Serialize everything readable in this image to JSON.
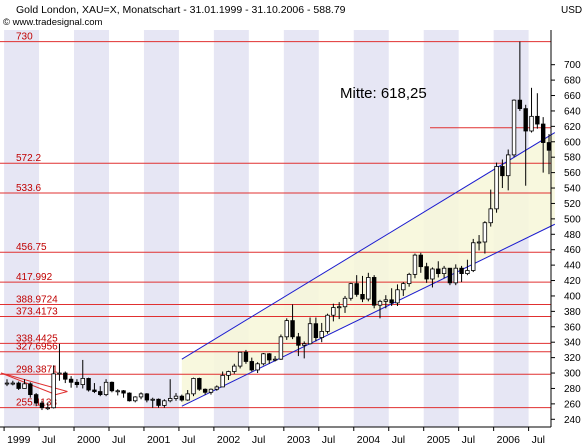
{
  "header": {
    "title": "Gold London, XAU=X, Monatschart - 31.01.1999 - 31.10.2006 - 588.79",
    "copyright": "© www.tradesignal.com",
    "unit": "USD"
  },
  "annotation": {
    "text": "Mitte: 618,25"
  },
  "colors": {
    "candle_up": "#ffffff",
    "candle_down": "#000000",
    "level_line": "#e03030",
    "level_text": "#c00000",
    "channel_line": "#1c1ccf",
    "channel_fill": "#f7f7d8",
    "stripe": "#e6e6f4",
    "triangle_line": "#e03030"
  },
  "chart_data": {
    "type": "candlestick",
    "title": "Gold London, XAU=X, Monatschart - 31.01.1999 - 31.10.2006 - 588.79",
    "ylabel": "USD",
    "ylim": [
      230,
      745
    ],
    "y_ticks": [
      240,
      260,
      280,
      300,
      320,
      340,
      360,
      380,
      400,
      420,
      440,
      460,
      480,
      500,
      520,
      540,
      560,
      580,
      600,
      620,
      640,
      660,
      680,
      700
    ],
    "x_ticks": [
      {
        "label": "1999",
        "date": "1999-01"
      },
      {
        "label": "Jul",
        "date": "1999-07"
      },
      {
        "label": "2000",
        "date": "2000-01"
      },
      {
        "label": "Jul",
        "date": "2000-07"
      },
      {
        "label": "2001",
        "date": "2001-01"
      },
      {
        "label": "Jul",
        "date": "2001-07"
      },
      {
        "label": "2002",
        "date": "2002-01"
      },
      {
        "label": "Jul",
        "date": "2002-07"
      },
      {
        "label": "2003",
        "date": "2003-01"
      },
      {
        "label": "Jul",
        "date": "2003-07"
      },
      {
        "label": "2004",
        "date": "2004-01"
      },
      {
        "label": "Jul",
        "date": "2004-07"
      },
      {
        "label": "2005",
        "date": "2005-01"
      },
      {
        "label": "Jul",
        "date": "2005-07"
      },
      {
        "label": "2006",
        "date": "2006-01"
      },
      {
        "label": "Jul",
        "date": "2006-07"
      }
    ],
    "horizontal_levels": [
      {
        "label": "730",
        "value": 730
      },
      {
        "label": "572.2",
        "value": 572.2
      },
      {
        "label": "533.6",
        "value": 533.6
      },
      {
        "label": "456.75",
        "value": 456.75
      },
      {
        "label": "417.992",
        "value": 417.992
      },
      {
        "label": "388.9724",
        "value": 388.9724
      },
      {
        "label": "373.4173",
        "value": 373.4173
      },
      {
        "label": "338.4425",
        "value": 338.4425
      },
      {
        "label": "327.6956",
        "value": 327.6956
      },
      {
        "label": "298.3871",
        "value": 298.3871
      },
      {
        "label": "255.1138",
        "value": 255.1138
      }
    ],
    "mitte_level": 618.25,
    "channel": {
      "upper": [
        {
          "date": "2001-07",
          "value": 318
        },
        {
          "date": "2006-11",
          "value": 612
        }
      ],
      "lower": [
        {
          "date": "2001-07",
          "value": 257
        },
        {
          "date": "2006-11",
          "value": 493
        }
      ]
    },
    "triangle": {
      "apex": {
        "date": "1999-01",
        "value": 300
      },
      "upper": {
        "date": "1999-10",
        "value": 276
      },
      "lower": {
        "date": "1999-08",
        "value": 272
      }
    },
    "candles": [
      {
        "date": "1999-01",
        "open": 287,
        "high": 292,
        "low": 283,
        "close": 287
      },
      {
        "date": "1999-02",
        "open": 287,
        "high": 290,
        "low": 284,
        "close": 287
      },
      {
        "date": "1999-03",
        "open": 287,
        "high": 289,
        "low": 278,
        "close": 280
      },
      {
        "date": "1999-04",
        "open": 280,
        "high": 292,
        "low": 280,
        "close": 286
      },
      {
        "date": "1999-05",
        "open": 286,
        "high": 288,
        "low": 268,
        "close": 272
      },
      {
        "date": "1999-06",
        "open": 272,
        "high": 274,
        "low": 257,
        "close": 261
      },
      {
        "date": "1999-07",
        "open": 261,
        "high": 264,
        "low": 252,
        "close": 255
      },
      {
        "date": "1999-08",
        "open": 255,
        "high": 262,
        "low": 252,
        "close": 255
      },
      {
        "date": "1999-09",
        "open": 255,
        "high": 310,
        "low": 254,
        "close": 299
      },
      {
        "date": "1999-10",
        "open": 299,
        "high": 338,
        "low": 290,
        "close": 300
      },
      {
        "date": "1999-11",
        "open": 300,
        "high": 302,
        "low": 287,
        "close": 292
      },
      {
        "date": "1999-12",
        "open": 292,
        "high": 296,
        "low": 281,
        "close": 288
      },
      {
        "date": "2000-01",
        "open": 288,
        "high": 292,
        "low": 281,
        "close": 285
      },
      {
        "date": "2000-02",
        "open": 285,
        "high": 317,
        "low": 280,
        "close": 293
      },
      {
        "date": "2000-03",
        "open": 293,
        "high": 294,
        "low": 276,
        "close": 278
      },
      {
        "date": "2000-04",
        "open": 278,
        "high": 287,
        "low": 274,
        "close": 276
      },
      {
        "date": "2000-05",
        "open": 276,
        "high": 283,
        "low": 270,
        "close": 272
      },
      {
        "date": "2000-06",
        "open": 272,
        "high": 292,
        "low": 270,
        "close": 288
      },
      {
        "date": "2000-07",
        "open": 288,
        "high": 289,
        "low": 275,
        "close": 277
      },
      {
        "date": "2000-08",
        "open": 277,
        "high": 279,
        "low": 271,
        "close": 277
      },
      {
        "date": "2000-09",
        "open": 277,
        "high": 278,
        "low": 268,
        "close": 274
      },
      {
        "date": "2000-10",
        "open": 274,
        "high": 275,
        "low": 263,
        "close": 264
      },
      {
        "date": "2000-11",
        "open": 264,
        "high": 270,
        "low": 262,
        "close": 269
      },
      {
        "date": "2000-12",
        "open": 269,
        "high": 275,
        "low": 266,
        "close": 273
      },
      {
        "date": "2001-01",
        "open": 273,
        "high": 274,
        "low": 262,
        "close": 265
      },
      {
        "date": "2001-02",
        "open": 265,
        "high": 268,
        "low": 255,
        "close": 266
      },
      {
        "date": "2001-03",
        "open": 266,
        "high": 267,
        "low": 255,
        "close": 258
      },
      {
        "date": "2001-04",
        "open": 258,
        "high": 266,
        "low": 255,
        "close": 264
      },
      {
        "date": "2001-05",
        "open": 264,
        "high": 292,
        "low": 262,
        "close": 267
      },
      {
        "date": "2001-06",
        "open": 267,
        "high": 274,
        "low": 264,
        "close": 270
      },
      {
        "date": "2001-07",
        "open": 270,
        "high": 272,
        "low": 263,
        "close": 265
      },
      {
        "date": "2001-08",
        "open": 265,
        "high": 278,
        "low": 264,
        "close": 273
      },
      {
        "date": "2001-09",
        "open": 273,
        "high": 294,
        "low": 270,
        "close": 293
      },
      {
        "date": "2001-10",
        "open": 293,
        "high": 294,
        "low": 277,
        "close": 279
      },
      {
        "date": "2001-11",
        "open": 279,
        "high": 280,
        "low": 272,
        "close": 275
      },
      {
        "date": "2001-12",
        "open": 275,
        "high": 280,
        "low": 272,
        "close": 279
      },
      {
        "date": "2002-01",
        "open": 279,
        "high": 284,
        "low": 277,
        "close": 282
      },
      {
        "date": "2002-02",
        "open": 282,
        "high": 302,
        "low": 282,
        "close": 297
      },
      {
        "date": "2002-03",
        "open": 297,
        "high": 303,
        "low": 291,
        "close": 302
      },
      {
        "date": "2002-04",
        "open": 302,
        "high": 312,
        "low": 299,
        "close": 309
      },
      {
        "date": "2002-05",
        "open": 309,
        "high": 327,
        "low": 306,
        "close": 327
      },
      {
        "date": "2002-06",
        "open": 327,
        "high": 330,
        "low": 312,
        "close": 315
      },
      {
        "date": "2002-07",
        "open": 315,
        "high": 320,
        "low": 302,
        "close": 304
      },
      {
        "date": "2002-08",
        "open": 304,
        "high": 314,
        "low": 300,
        "close": 312
      },
      {
        "date": "2002-09",
        "open": 312,
        "high": 326,
        "low": 310,
        "close": 325
      },
      {
        "date": "2002-10",
        "open": 325,
        "high": 326,
        "low": 312,
        "close": 317
      },
      {
        "date": "2002-11",
        "open": 317,
        "high": 322,
        "low": 315,
        "close": 318
      },
      {
        "date": "2002-12",
        "open": 318,
        "high": 350,
        "low": 317,
        "close": 347
      },
      {
        "date": "2003-01",
        "open": 347,
        "high": 371,
        "low": 343,
        "close": 368
      },
      {
        "date": "2003-02",
        "open": 368,
        "high": 389,
        "low": 344,
        "close": 347
      },
      {
        "date": "2003-03",
        "open": 347,
        "high": 352,
        "low": 322,
        "close": 336
      },
      {
        "date": "2003-04",
        "open": 336,
        "high": 341,
        "low": 319,
        "close": 338
      },
      {
        "date": "2003-05",
        "open": 338,
        "high": 372,
        "low": 337,
        "close": 364
      },
      {
        "date": "2003-06",
        "open": 364,
        "high": 372,
        "low": 341,
        "close": 346
      },
      {
        "date": "2003-07",
        "open": 346,
        "high": 365,
        "low": 340,
        "close": 354
      },
      {
        "date": "2003-08",
        "open": 354,
        "high": 377,
        "low": 351,
        "close": 375
      },
      {
        "date": "2003-09",
        "open": 375,
        "high": 390,
        "low": 367,
        "close": 385
      },
      {
        "date": "2003-10",
        "open": 385,
        "high": 392,
        "low": 370,
        "close": 386
      },
      {
        "date": "2003-11",
        "open": 386,
        "high": 400,
        "low": 378,
        "close": 397
      },
      {
        "date": "2003-12",
        "open": 397,
        "high": 417,
        "low": 394,
        "close": 416
      },
      {
        "date": "2004-01",
        "open": 416,
        "high": 427,
        "low": 399,
        "close": 402
      },
      {
        "date": "2004-02",
        "open": 402,
        "high": 426,
        "low": 392,
        "close": 396
      },
      {
        "date": "2004-03",
        "open": 396,
        "high": 430,
        "low": 393,
        "close": 424
      },
      {
        "date": "2004-04",
        "open": 424,
        "high": 427,
        "low": 384,
        "close": 388
      },
      {
        "date": "2004-05",
        "open": 388,
        "high": 395,
        "low": 371,
        "close": 393
      },
      {
        "date": "2004-06",
        "open": 393,
        "high": 401,
        "low": 384,
        "close": 395
      },
      {
        "date": "2004-07",
        "open": 395,
        "high": 410,
        "low": 387,
        "close": 391
      },
      {
        "date": "2004-08",
        "open": 391,
        "high": 415,
        "low": 387,
        "close": 408
      },
      {
        "date": "2004-09",
        "open": 408,
        "high": 418,
        "low": 400,
        "close": 416
      },
      {
        "date": "2004-10",
        "open": 416,
        "high": 430,
        "low": 412,
        "close": 428
      },
      {
        "date": "2004-11",
        "open": 428,
        "high": 455,
        "low": 423,
        "close": 453
      },
      {
        "date": "2004-12",
        "open": 453,
        "high": 456,
        "low": 430,
        "close": 438
      },
      {
        "date": "2005-01",
        "open": 438,
        "high": 443,
        "low": 417,
        "close": 422
      },
      {
        "date": "2005-02",
        "open": 422,
        "high": 437,
        "low": 411,
        "close": 435
      },
      {
        "date": "2005-03",
        "open": 435,
        "high": 445,
        "low": 424,
        "close": 429
      },
      {
        "date": "2005-04",
        "open": 429,
        "high": 439,
        "low": 423,
        "close": 436
      },
      {
        "date": "2005-05",
        "open": 436,
        "high": 436,
        "low": 414,
        "close": 417
      },
      {
        "date": "2005-06",
        "open": 417,
        "high": 441,
        "low": 414,
        "close": 436
      },
      {
        "date": "2005-07",
        "open": 436,
        "high": 439,
        "low": 418,
        "close": 429
      },
      {
        "date": "2005-08",
        "open": 429,
        "high": 447,
        "low": 427,
        "close": 433
      },
      {
        "date": "2005-09",
        "open": 433,
        "high": 474,
        "low": 431,
        "close": 469
      },
      {
        "date": "2005-10",
        "open": 469,
        "high": 479,
        "low": 459,
        "close": 470
      },
      {
        "date": "2005-11",
        "open": 470,
        "high": 497,
        "low": 455,
        "close": 495
      },
      {
        "date": "2005-12",
        "open": 495,
        "high": 538,
        "low": 490,
        "close": 513
      },
      {
        "date": "2006-01",
        "open": 513,
        "high": 573,
        "low": 508,
        "close": 568
      },
      {
        "date": "2006-02",
        "open": 568,
        "high": 577,
        "low": 540,
        "close": 556
      },
      {
        "date": "2006-03",
        "open": 556,
        "high": 590,
        "low": 537,
        "close": 583
      },
      {
        "date": "2006-04",
        "open": 583,
        "high": 655,
        "low": 580,
        "close": 654
      },
      {
        "date": "2006-05",
        "open": 654,
        "high": 730,
        "low": 640,
        "close": 643
      },
      {
        "date": "2006-06",
        "open": 643,
        "high": 648,
        "low": 543,
        "close": 614
      },
      {
        "date": "2006-07",
        "open": 614,
        "high": 670,
        "low": 612,
        "close": 633
      },
      {
        "date": "2006-08",
        "open": 633,
        "high": 663,
        "low": 617,
        "close": 623
      },
      {
        "date": "2006-09",
        "open": 623,
        "high": 632,
        "low": 560,
        "close": 599
      },
      {
        "date": "2006-10",
        "open": 599,
        "high": 610,
        "low": 558,
        "close": 589
      }
    ]
  }
}
